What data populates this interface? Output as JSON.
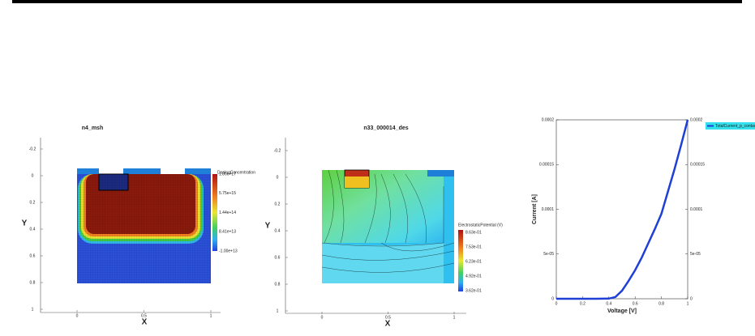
{
  "chart_data": [
    {
      "type": "heatmap",
      "title": "n4_msh",
      "xlabel": "X",
      "ylabel": "Y",
      "xlim": [
        0,
        1
      ],
      "ylim": [
        1,
        -0.2
      ],
      "xticks": [
        0,
        0.5,
        1
      ],
      "yticks": [
        -0.2,
        0,
        0.2,
        0.4,
        0.6,
        0.8,
        1
      ],
      "colorbar_title": "DopingConcentration",
      "colorbar_ticks": [
        "1.00e+17",
        "5.75e+15",
        "1.44e+14",
        "8.41e+13",
        "-1.00e+13"
      ]
    },
    {
      "type": "heatmap",
      "title": "n33_000014_des",
      "xlabel": "X",
      "ylabel": "Y",
      "xlim": [
        0,
        1
      ],
      "ylim": [
        1,
        -0.2
      ],
      "xticks": [
        0,
        0.5,
        1
      ],
      "yticks": [
        -0.2,
        0,
        0.2,
        0.4,
        0.6,
        0.8,
        1
      ],
      "colorbar_title": "ElectrostaticPotential (V)",
      "colorbar_ticks": [
        "8.63e-01",
        "7.53e-01",
        "6.23e-01",
        "4.92e-01",
        "3.62e-01"
      ]
    },
    {
      "type": "line",
      "xlabel": "Voltage [V]",
      "ylabel": "Current [A]",
      "x": [
        0,
        0.1,
        0.2,
        0.3,
        0.4,
        0.45,
        0.5,
        0.55,
        0.6,
        0.65,
        0.7,
        0.75,
        0.8,
        0.85,
        0.9,
        0.95,
        1
      ],
      "series": [
        {
          "name": "TotalCurrent_p_contact",
          "color": "#1f3fd6",
          "values": [
            0,
            0,
            0,
            0,
            2e-07,
            2e-06,
            9e-06,
            2e-05,
            3.2e-05,
            4.6e-05,
            6.2e-05,
            7.8e-05,
            9.5e-05,
            0.00012,
            0.000145,
            0.000172,
            0.0002
          ]
        }
      ],
      "xlim": [
        0,
        1
      ],
      "ylim": [
        0,
        0.0002
      ],
      "xticks": [
        0,
        0.2,
        0.4,
        0.6,
        0.8,
        1
      ],
      "yticks": [
        0,
        {
          "value": 5e-05,
          "label": "5e-05"
        },
        0.0001,
        0.00015,
        0.0002
      ],
      "legend": "outside-right"
    }
  ]
}
